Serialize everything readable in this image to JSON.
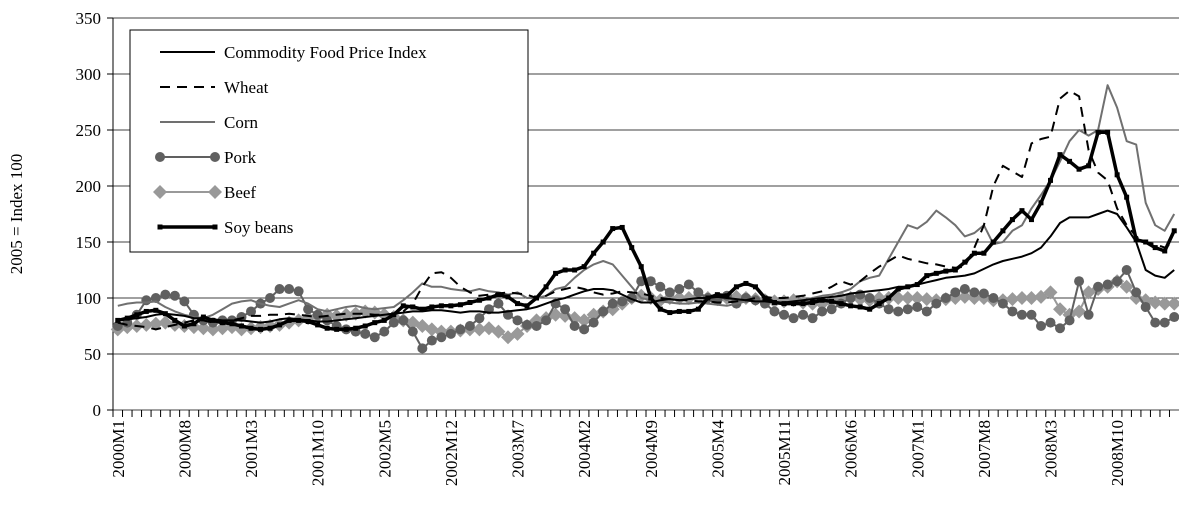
{
  "chart_data": {
    "type": "line",
    "y_label": "2005 = Index 100",
    "categories": [
      "2000M1",
      null,
      null,
      null,
      null,
      null,
      null,
      "2000M8",
      null,
      null,
      null,
      null,
      null,
      null,
      "2001M3",
      null,
      null,
      null,
      null,
      null,
      null,
      "2001M10",
      null,
      null,
      null,
      null,
      null,
      null,
      "2002M5",
      null,
      null,
      null,
      null,
      null,
      null,
      "2002M12",
      null,
      null,
      null,
      null,
      null,
      null,
      "2003M7",
      null,
      null,
      null,
      null,
      null,
      null,
      "2004M2",
      null,
      null,
      null,
      null,
      null,
      null,
      "2004M9",
      null,
      null,
      null,
      null,
      null,
      null,
      "2005M4",
      null,
      null,
      null,
      null,
      null,
      null,
      "2005M11",
      null,
      null,
      null,
      null,
      null,
      null,
      "2006M6",
      null,
      null,
      null,
      null,
      null,
      null,
      "2007M1",
      null,
      null,
      null,
      null,
      null,
      null,
      "2007M8",
      null,
      null,
      null,
      null,
      null,
      null,
      "2008M3",
      null,
      null,
      null,
      null,
      null,
      null,
      "2008M10",
      null,
      null,
      null,
      null,
      null,
      null
    ],
    "ylim": [
      0,
      350
    ],
    "yticks": [
      0,
      50,
      100,
      150,
      200,
      250,
      300,
      350
    ],
    "grid": true,
    "legend": "top-left",
    "series": [
      {
        "name": "Commodity Food Price Index",
        "color": "#000000",
        "line": "solid",
        "marker": "none",
        "values": [
          80,
          81,
          82,
          83,
          85,
          86,
          85,
          84,
          82,
          82,
          81,
          80,
          80,
          80,
          79,
          78,
          79,
          81,
          82,
          81,
          80,
          79,
          79,
          80,
          81,
          82,
          83,
          84,
          85,
          86,
          87,
          88,
          88,
          89,
          89,
          88,
          87,
          88,
          88,
          87,
          87,
          88,
          89,
          90,
          92,
          95,
          98,
          100,
          103,
          106,
          108,
          108,
          107,
          103,
          99,
          96,
          96,
          98,
          99,
          98,
          99,
          100,
          100,
          101,
          100,
          99,
          98,
          97,
          97,
          96,
          96,
          97,
          98,
          99,
          100,
          101,
          102,
          104,
          105,
          106,
          107,
          108,
          110,
          110,
          112,
          114,
          116,
          118,
          119,
          120,
          122,
          126,
          130,
          133,
          135,
          137,
          140,
          145,
          155,
          167,
          172,
          172,
          172,
          175,
          178,
          175,
          163,
          150,
          125,
          120,
          118,
          125
        ]
      },
      {
        "name": "Wheat",
        "color": "#000000",
        "line": "dashed",
        "marker": "none",
        "values": [
          78,
          76,
          75,
          74,
          72,
          74,
          76,
          78,
          80,
          80,
          78,
          78,
          80,
          82,
          84,
          84,
          85,
          85,
          86,
          85,
          84,
          83,
          84,
          85,
          86,
          86,
          86,
          85,
          85,
          86,
          88,
          95,
          110,
          122,
          123,
          118,
          110,
          105,
          102,
          103,
          104,
          105,
          104,
          103,
          100,
          102,
          106,
          108,
          110,
          108,
          105,
          103,
          104,
          106,
          105,
          104,
          102,
          100,
          99,
          98,
          98,
          97,
          97,
          96,
          96,
          97,
          98,
          100,
          101,
          100,
          100,
          101,
          102,
          104,
          106,
          110,
          115,
          112,
          115,
          122,
          128,
          133,
          138,
          135,
          133,
          131,
          130,
          128,
          127,
          128,
          145,
          165,
          200,
          218,
          213,
          208,
          238,
          242,
          244,
          278,
          285,
          280,
          232,
          212,
          205,
          180,
          165,
          155,
          150,
          148,
          145,
          150
        ]
      },
      {
        "name": "Corn",
        "color": "#707070",
        "line": "solid",
        "marker": "none",
        "values": [
          93,
          95,
          96,
          96,
          97,
          92,
          88,
          85,
          83,
          82,
          85,
          90,
          95,
          97,
          98,
          95,
          93,
          92,
          95,
          98,
          95,
          90,
          88,
          90,
          92,
          93,
          91,
          90,
          91,
          92,
          98,
          105,
          113,
          110,
          110,
          108,
          107,
          106,
          108,
          106,
          105,
          103,
          105,
          100,
          100,
          102,
          108,
          110,
          118,
          125,
          130,
          133,
          130,
          120,
          110,
          100,
          98,
          97,
          96,
          95,
          95,
          96,
          95,
          94,
          93,
          95,
          97,
          98,
          97,
          96,
          96,
          97,
          98,
          100,
          102,
          103,
          105,
          108,
          115,
          118,
          120,
          135,
          150,
          165,
          162,
          168,
          178,
          172,
          165,
          155,
          158,
          165,
          148,
          150,
          160,
          165,
          180,
          192,
          205,
          222,
          240,
          250,
          245,
          250,
          290,
          270,
          240,
          237,
          185,
          165,
          160,
          175
        ]
      },
      {
        "name": "Pork",
        "color": "#606060",
        "line": "solid",
        "marker": "circle",
        "values": [
          75,
          78,
          85,
          98,
          100,
          103,
          102,
          97,
          85,
          80,
          78,
          80,
          80,
          83,
          88,
          95,
          100,
          108,
          108,
          106,
          90,
          85,
          80,
          75,
          72,
          70,
          68,
          65,
          70,
          78,
          80,
          70,
          55,
          62,
          65,
          68,
          72,
          75,
          82,
          90,
          95,
          85,
          80,
          76,
          75,
          80,
          95,
          90,
          75,
          72,
          78,
          88,
          95,
          97,
          100,
          115,
          115,
          110,
          105,
          108,
          112,
          105,
          100,
          98,
          102,
          95,
          100,
          98,
          95,
          88,
          85,
          82,
          85,
          82,
          88,
          90,
          95,
          100,
          103,
          100,
          95,
          90,
          88,
          90,
          92,
          88,
          95,
          100,
          105,
          108,
          105,
          104,
          100,
          95,
          88,
          85,
          85,
          75,
          78,
          73,
          80,
          115,
          85,
          110,
          112,
          115,
          125,
          105,
          92,
          78,
          78,
          83
        ]
      },
      {
        "name": "Beef",
        "color": "#999999",
        "line": "solid",
        "marker": "diamond",
        "values": [
          72,
          74,
          75,
          76,
          77,
          78,
          76,
          75,
          74,
          73,
          72,
          73,
          74,
          72,
          73,
          74,
          75,
          76,
          78,
          80,
          82,
          84,
          85,
          84,
          85,
          86,
          88,
          87,
          85,
          83,
          80,
          78,
          75,
          72,
          70,
          70,
          71,
          72,
          72,
          73,
          70,
          65,
          68,
          75,
          80,
          82,
          85,
          84,
          82,
          80,
          85,
          88,
          90,
          95,
          100,
          102,
          100,
          98,
          100,
          100,
          100,
          101,
          100,
          99,
          100,
          101,
          100,
          99,
          98,
          97,
          97,
          98,
          96,
          95,
          95,
          97,
          100,
          100,
          99,
          98,
          100,
          100,
          100,
          100,
          100,
          99,
          98,
          99,
          100,
          101,
          100,
          100,
          98,
          98,
          99,
          100,
          100,
          101,
          105,
          90,
          85,
          88,
          105,
          108,
          110,
          115,
          110,
          100,
          98,
          96,
          95,
          95
        ]
      },
      {
        "name": "Soy beans",
        "color": "#000000",
        "line": "thick",
        "marker": "square",
        "values": [
          80,
          82,
          85,
          88,
          89,
          86,
          80,
          75,
          77,
          83,
          80,
          78,
          77,
          75,
          73,
          72,
          73,
          76,
          80,
          80,
          79,
          76,
          73,
          72,
          72,
          73,
          75,
          78,
          80,
          85,
          93,
          92,
          90,
          92,
          93,
          93,
          94,
          96,
          98,
          100,
          103,
          101,
          95,
          93,
          100,
          110,
          122,
          125,
          125,
          128,
          140,
          150,
          162,
          163,
          145,
          128,
          100,
          90,
          87,
          88,
          88,
          90,
          100,
          103,
          102,
          110,
          113,
          110,
          100,
          96,
          95,
          95,
          95,
          96,
          98,
          97,
          95,
          93,
          92,
          90,
          95,
          100,
          108,
          110,
          112,
          120,
          122,
          124,
          125,
          132,
          140,
          140,
          150,
          160,
          170,
          178,
          170,
          185,
          205,
          228,
          222,
          215,
          218,
          248,
          248,
          210,
          190,
          152,
          150,
          145,
          142,
          160
        ]
      }
    ]
  }
}
